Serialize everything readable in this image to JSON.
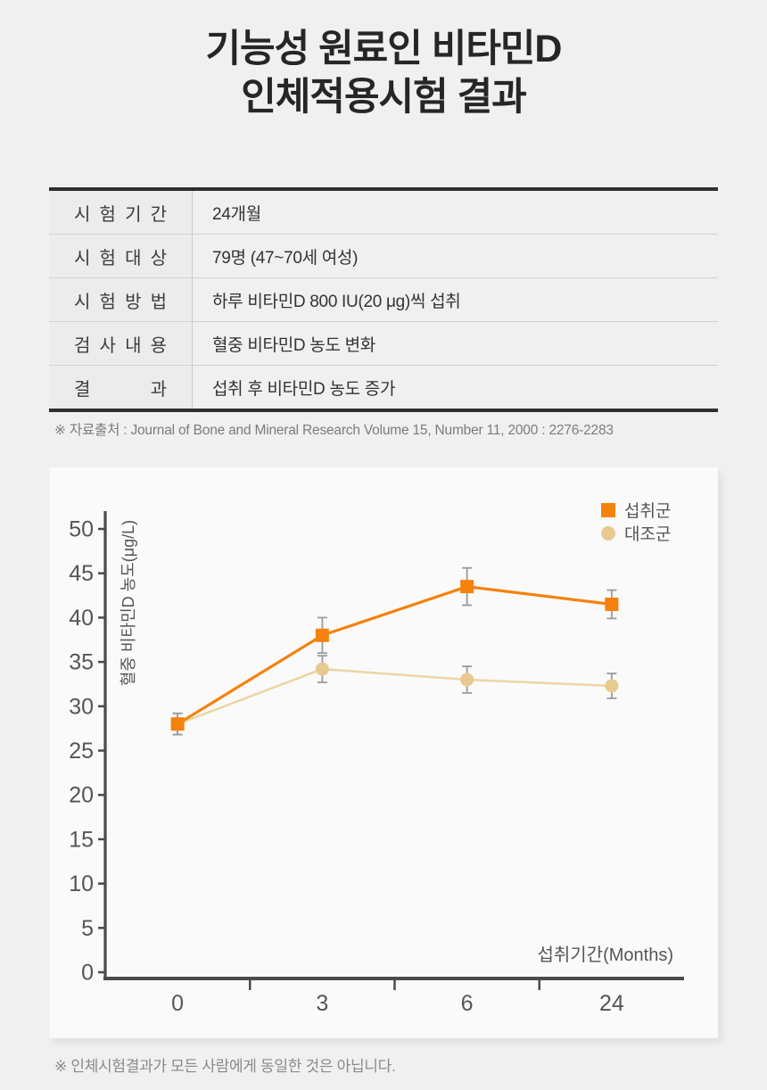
{
  "page": {
    "background": "#f0f0f0"
  },
  "title": {
    "line1": "기능성 원료인 비타민D",
    "line2": "인체적용시험 결과"
  },
  "table": {
    "rows": [
      {
        "label": "시험기간",
        "value": "24개월"
      },
      {
        "label": "시험대상",
        "value": "79명 (47~70세 여성)"
      },
      {
        "label": "시험방법",
        "value": "하루 비타민D 800 IU(20 μg)씩 섭취"
      },
      {
        "label": "검사내용",
        "value": "혈중 비타민D 농도 변화"
      },
      {
        "label": "결과",
        "value": "섭취 후 비타민D 농도 증가"
      }
    ]
  },
  "source_note": "※ 자료출처 : Journal of Bone and Mineral Research Volume 15, Number 11, 2000 : 2276-2283",
  "footer_note": "※ 인체시험결과가 모든 사람에게 동일한 것은 아닙니다.",
  "chart_data": {
    "type": "line",
    "categories": [
      "0",
      "3",
      "6",
      "24"
    ],
    "xlabel": "섭취기간(Months)",
    "ylabel": "혈중 비타민D 농도(μg/L)",
    "ylim": [
      0,
      50
    ],
    "ytick_step": 5,
    "yticks": [
      0,
      5,
      10,
      15,
      20,
      25,
      30,
      35,
      40,
      45,
      50
    ],
    "grid": false,
    "legend_position": "top-right",
    "error_bars": true,
    "series": [
      {
        "name": "섭취군",
        "marker": "square",
        "color": "#F5820D",
        "line_color": "#F5820D",
        "values": [
          28,
          38,
          43.5,
          41.5
        ],
        "errors": [
          1.2,
          2.0,
          2.1,
          1.6
        ]
      },
      {
        "name": "대조군",
        "marker": "circle",
        "color": "#E8CA90",
        "line_color": "#ECD6A6",
        "values": [
          28,
          34.2,
          33,
          32.3
        ],
        "errors": [
          1.2,
          1.5,
          1.5,
          1.4
        ]
      }
    ],
    "error_bar_color": "#9B9B9B",
    "axis_color": "#4A4A4A",
    "tick_label_color": "#555555"
  }
}
